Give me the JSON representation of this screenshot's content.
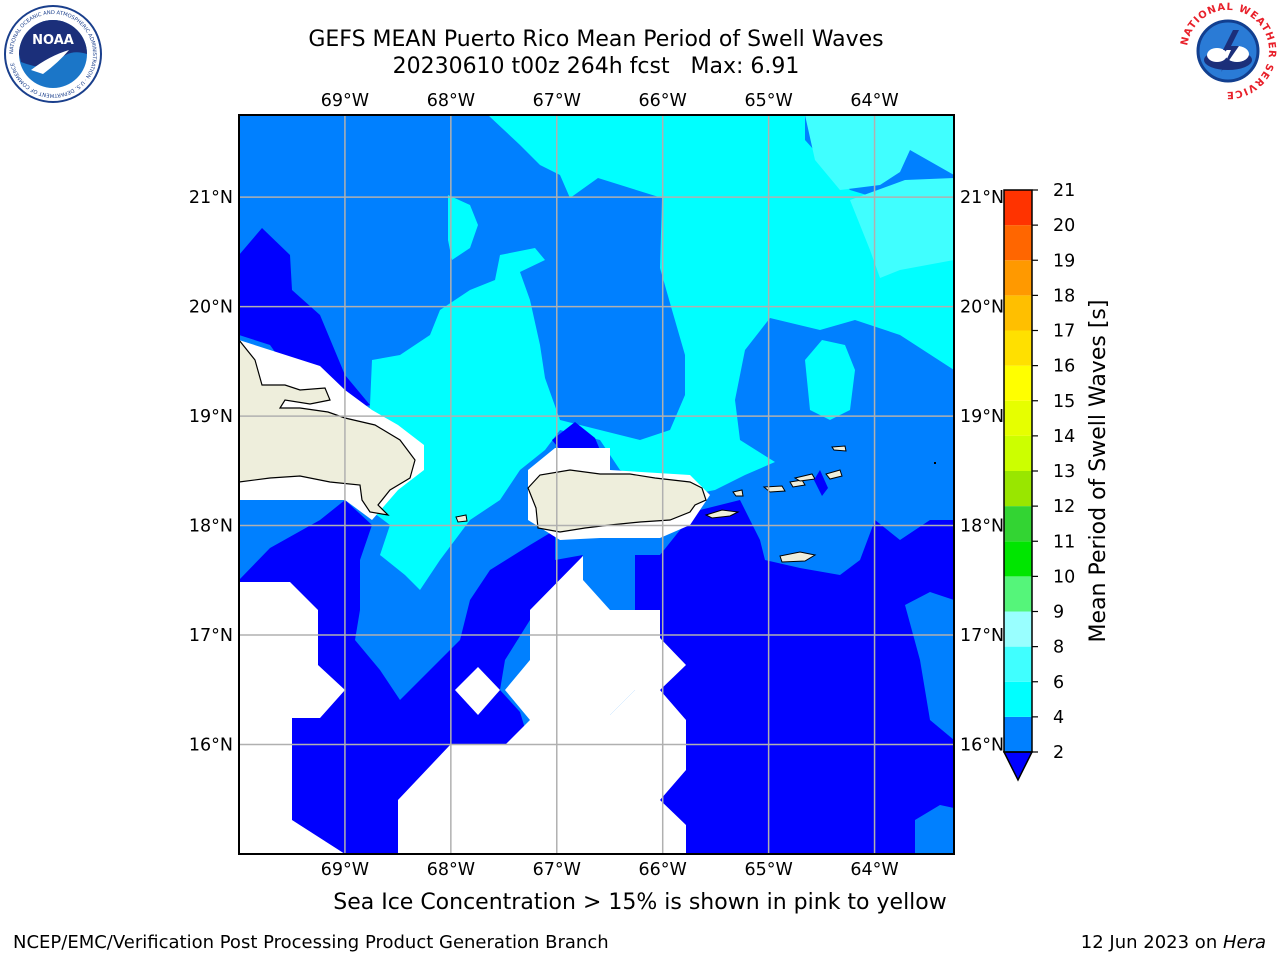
{
  "title": {
    "line1": "GEFS MEAN Puerto Rico Mean Period of Swell Waves",
    "line2": "20230610 t00z 264h fcst   Max: 6.91"
  },
  "map": {
    "lon_ticks": [
      "69°W",
      "68°W",
      "67°W",
      "66°W",
      "65°W",
      "64°W"
    ],
    "lat_ticks": [
      "21°N",
      "20°N",
      "19°N",
      "18°N",
      "17°N",
      "16°N"
    ],
    "lon_range": [
      -70.0,
      -63.25
    ],
    "lat_range": [
      15.0,
      21.75
    ]
  },
  "colorbar": {
    "label": "Mean Period of Swell Waves [s]",
    "tick_labels": [
      "2",
      "4",
      "6",
      "8",
      "9",
      "10",
      "11",
      "12",
      "13",
      "14",
      "15",
      "16",
      "17",
      "18",
      "19",
      "20",
      "21"
    ],
    "levels": [
      2,
      4,
      6,
      8,
      9,
      10,
      11,
      12,
      13,
      14,
      15,
      16,
      17,
      18,
      19,
      20,
      21
    ],
    "colors": [
      "#0080ff",
      "#00ffff",
      "#40ffff",
      "#99ffff",
      "#55f57a",
      "#00e600",
      "#33d433",
      "#99e600",
      "#ccff00",
      "#e6ff00",
      "#ffff00",
      "#ffe000",
      "#ffbf00",
      "#ff9900",
      "#ff6600",
      "#ff3300",
      "#ff0000"
    ],
    "extend_color": "#0000ff"
  },
  "colors": {
    "land": "#eeeedc",
    "deep_blue": "#0000ff",
    "mid_blue": "#0080ff",
    "cyan": "#00ffff",
    "light_cyan": "#40ffff",
    "grid": "#b0b0b0"
  },
  "footer": {
    "note": "Sea Ice Concentration > 15% is shown in pink to yellow",
    "left": "NCEP/EMC/Verification Post Processing Product Generation Branch",
    "right_date": "12 Jun 2023 on ",
    "right_machine": "Hera"
  },
  "logos": {
    "noaa_text": "NOAA",
    "noaa_ring": "NATIONAL OCEANIC AND ATMOSPHERIC ADMINISTRATION · U.S. DEPARTMENT OF COMMERCE",
    "nws_ring": "NATIONAL WEATHER SERVICE"
  }
}
